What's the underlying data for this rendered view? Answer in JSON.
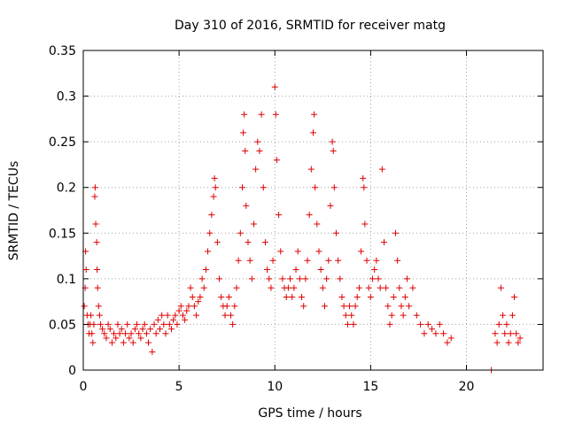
{
  "chart_data": {
    "type": "scatter",
    "title": "Day 310 of 2016, SRMTID for receiver matg",
    "xlabel": "GPS time / hours",
    "ylabel": "SRMTID / TECUs",
    "xlim": [
      0,
      24
    ],
    "ylim": [
      0,
      0.35
    ],
    "xticks": [
      0,
      5,
      10,
      15,
      20
    ],
    "xtick_labels": [
      "0",
      "5",
      "10",
      "15",
      "20"
    ],
    "yticks": [
      0,
      0.05,
      0.1,
      0.15,
      0.2,
      0.25,
      0.3,
      0.35
    ],
    "ytick_labels": [
      "0",
      "0.05",
      "0.1",
      "0.15",
      "0.2",
      "0.25",
      "0.3",
      "0.35"
    ],
    "grid": true,
    "marker": "plus",
    "color": "#e00000",
    "series": [
      {
        "name": "SRMTID",
        "points": [
          [
            0.05,
            0.07
          ],
          [
            0.1,
            0.09
          ],
          [
            0.12,
            0.13
          ],
          [
            0.15,
            0.11
          ],
          [
            0.2,
            0.06
          ],
          [
            0.25,
            0.05
          ],
          [
            0.3,
            0.04
          ],
          [
            0.35,
            0.05
          ],
          [
            0.4,
            0.06
          ],
          [
            0.45,
            0.04
          ],
          [
            0.5,
            0.03
          ],
          [
            0.55,
            0.05
          ],
          [
            0.6,
            0.19
          ],
          [
            0.62,
            0.2
          ],
          [
            0.65,
            0.16
          ],
          [
            0.7,
            0.14
          ],
          [
            0.72,
            0.11
          ],
          [
            0.75,
            0.09
          ],
          [
            0.8,
            0.07
          ],
          [
            0.85,
            0.06
          ],
          [
            0.9,
            0.05
          ],
          [
            1.0,
            0.045
          ],
          [
            1.1,
            0.04
          ],
          [
            1.2,
            0.035
          ],
          [
            1.3,
            0.05
          ],
          [
            1.4,
            0.045
          ],
          [
            1.5,
            0.03
          ],
          [
            1.6,
            0.04
          ],
          [
            1.7,
            0.035
          ],
          [
            1.8,
            0.05
          ],
          [
            1.9,
            0.04
          ],
          [
            2.0,
            0.045
          ],
          [
            2.1,
            0.03
          ],
          [
            2.2,
            0.04
          ],
          [
            2.3,
            0.05
          ],
          [
            2.4,
            0.035
          ],
          [
            2.5,
            0.04
          ],
          [
            2.6,
            0.03
          ],
          [
            2.7,
            0.045
          ],
          [
            2.8,
            0.05
          ],
          [
            2.9,
            0.04
          ],
          [
            3.0,
            0.035
          ],
          [
            3.1,
            0.045
          ],
          [
            3.2,
            0.05
          ],
          [
            3.3,
            0.04
          ],
          [
            3.4,
            0.03
          ],
          [
            3.5,
            0.045
          ],
          [
            3.6,
            0.02
          ],
          [
            3.7,
            0.05
          ],
          [
            3.8,
            0.04
          ],
          [
            3.9,
            0.055
          ],
          [
            4.0,
            0.045
          ],
          [
            4.1,
            0.06
          ],
          [
            4.2,
            0.05
          ],
          [
            4.3,
            0.04
          ],
          [
            4.4,
            0.06
          ],
          [
            4.5,
            0.05
          ],
          [
            4.6,
            0.045
          ],
          [
            4.7,
            0.055
          ],
          [
            4.8,
            0.06
          ],
          [
            4.9,
            0.05
          ],
          [
            5.0,
            0.065
          ],
          [
            5.1,
            0.07
          ],
          [
            5.2,
            0.06
          ],
          [
            5.3,
            0.055
          ],
          [
            5.4,
            0.065
          ],
          [
            5.5,
            0.07
          ],
          [
            5.6,
            0.09
          ],
          [
            5.7,
            0.08
          ],
          [
            5.8,
            0.07
          ],
          [
            5.9,
            0.06
          ],
          [
            6.0,
            0.075
          ],
          [
            6.1,
            0.08
          ],
          [
            6.2,
            0.1
          ],
          [
            6.3,
            0.09
          ],
          [
            6.4,
            0.11
          ],
          [
            6.5,
            0.13
          ],
          [
            6.6,
            0.15
          ],
          [
            6.7,
            0.17
          ],
          [
            6.8,
            0.19
          ],
          [
            6.85,
            0.21
          ],
          [
            6.9,
            0.2
          ],
          [
            7.0,
            0.14
          ],
          [
            7.1,
            0.1
          ],
          [
            7.2,
            0.08
          ],
          [
            7.3,
            0.07
          ],
          [
            7.4,
            0.06
          ],
          [
            7.5,
            0.07
          ],
          [
            7.6,
            0.08
          ],
          [
            7.7,
            0.06
          ],
          [
            7.8,
            0.05
          ],
          [
            7.9,
            0.07
          ],
          [
            8.0,
            0.09
          ],
          [
            8.1,
            0.12
          ],
          [
            8.2,
            0.15
          ],
          [
            8.3,
            0.2
          ],
          [
            8.35,
            0.26
          ],
          [
            8.4,
            0.28
          ],
          [
            8.45,
            0.24
          ],
          [
            8.5,
            0.18
          ],
          [
            8.6,
            0.14
          ],
          [
            8.7,
            0.12
          ],
          [
            8.8,
            0.1
          ],
          [
            8.9,
            0.16
          ],
          [
            9.0,
            0.22
          ],
          [
            9.1,
            0.25
          ],
          [
            9.2,
            0.24
          ],
          [
            9.3,
            0.28
          ],
          [
            9.4,
            0.2
          ],
          [
            9.5,
            0.14
          ],
          [
            9.6,
            0.11
          ],
          [
            9.7,
            0.1
          ],
          [
            9.8,
            0.09
          ],
          [
            9.9,
            0.12
          ],
          [
            10.0,
            0.31
          ],
          [
            10.05,
            0.28
          ],
          [
            10.1,
            0.23
          ],
          [
            10.2,
            0.17
          ],
          [
            10.3,
            0.13
          ],
          [
            10.4,
            0.1
          ],
          [
            10.5,
            0.09
          ],
          [
            10.6,
            0.08
          ],
          [
            10.7,
            0.09
          ],
          [
            10.8,
            0.1
          ],
          [
            10.9,
            0.08
          ],
          [
            11.0,
            0.09
          ],
          [
            11.1,
            0.11
          ],
          [
            11.2,
            0.13
          ],
          [
            11.3,
            0.1
          ],
          [
            11.4,
            0.08
          ],
          [
            11.5,
            0.07
          ],
          [
            11.6,
            0.1
          ],
          [
            11.7,
            0.12
          ],
          [
            11.8,
            0.17
          ],
          [
            11.9,
            0.22
          ],
          [
            12.0,
            0.26
          ],
          [
            12.05,
            0.28
          ],
          [
            12.1,
            0.2
          ],
          [
            12.2,
            0.16
          ],
          [
            12.3,
            0.13
          ],
          [
            12.4,
            0.11
          ],
          [
            12.5,
            0.09
          ],
          [
            12.6,
            0.07
          ],
          [
            12.7,
            0.1
          ],
          [
            12.8,
            0.12
          ],
          [
            12.9,
            0.18
          ],
          [
            13.0,
            0.25
          ],
          [
            13.05,
            0.24
          ],
          [
            13.1,
            0.2
          ],
          [
            13.2,
            0.15
          ],
          [
            13.3,
            0.12
          ],
          [
            13.4,
            0.1
          ],
          [
            13.5,
            0.08
          ],
          [
            13.6,
            0.07
          ],
          [
            13.7,
            0.06
          ],
          [
            13.8,
            0.05
          ],
          [
            13.9,
            0.07
          ],
          [
            14.0,
            0.06
          ],
          [
            14.1,
            0.05
          ],
          [
            14.2,
            0.07
          ],
          [
            14.3,
            0.08
          ],
          [
            14.4,
            0.09
          ],
          [
            14.5,
            0.13
          ],
          [
            14.6,
            0.21
          ],
          [
            14.65,
            0.2
          ],
          [
            14.7,
            0.16
          ],
          [
            14.8,
            0.12
          ],
          [
            14.9,
            0.09
          ],
          [
            15.0,
            0.08
          ],
          [
            15.1,
            0.1
          ],
          [
            15.2,
            0.11
          ],
          [
            15.3,
            0.12
          ],
          [
            15.4,
            0.1
          ],
          [
            15.5,
            0.09
          ],
          [
            15.6,
            0.22
          ],
          [
            15.7,
            0.14
          ],
          [
            15.8,
            0.09
          ],
          [
            15.9,
            0.07
          ],
          [
            16.0,
            0.05
          ],
          [
            16.1,
            0.06
          ],
          [
            16.2,
            0.08
          ],
          [
            16.3,
            0.15
          ],
          [
            16.4,
            0.12
          ],
          [
            16.5,
            0.09
          ],
          [
            16.6,
            0.07
          ],
          [
            16.7,
            0.06
          ],
          [
            16.8,
            0.08
          ],
          [
            16.9,
            0.1
          ],
          [
            17.0,
            0.07
          ],
          [
            17.2,
            0.09
          ],
          [
            17.4,
            0.06
          ],
          [
            17.6,
            0.05
          ],
          [
            17.8,
            0.04
          ],
          [
            18.0,
            0.05
          ],
          [
            18.2,
            0.045
          ],
          [
            18.4,
            0.04
          ],
          [
            18.6,
            0.05
          ],
          [
            18.8,
            0.04
          ],
          [
            19.0,
            0.03
          ],
          [
            19.2,
            0.035
          ],
          [
            21.3,
            0.0
          ],
          [
            21.5,
            0.04
          ],
          [
            21.6,
            0.03
          ],
          [
            21.7,
            0.05
          ],
          [
            21.8,
            0.09
          ],
          [
            21.9,
            0.06
          ],
          [
            22.0,
            0.04
          ],
          [
            22.1,
            0.05
          ],
          [
            22.2,
            0.03
          ],
          [
            22.3,
            0.04
          ],
          [
            22.4,
            0.06
          ],
          [
            22.5,
            0.08
          ],
          [
            22.6,
            0.04
          ],
          [
            22.7,
            0.03
          ],
          [
            22.8,
            0.035
          ]
        ]
      }
    ]
  }
}
